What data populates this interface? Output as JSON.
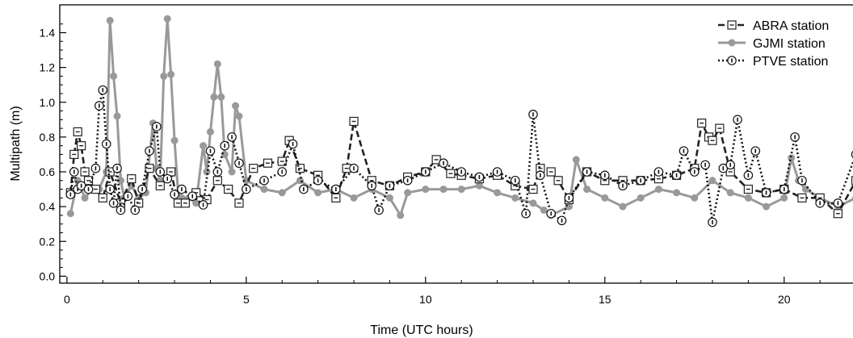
{
  "chart_data": {
    "type": "line",
    "title": "",
    "xlabel": "Time (UTC hours)",
    "ylabel": "Multipath (m)",
    "xlim": [
      -0.2,
      22.1
    ],
    "ylim": [
      -0.04,
      1.56
    ],
    "xticks": [
      0,
      5,
      10,
      15,
      20
    ],
    "xtick_labels": [
      "0",
      "5",
      "10",
      "15",
      "20"
    ],
    "yticks": [
      0.0,
      0.2,
      0.4,
      0.6,
      0.8,
      1.0,
      1.2,
      1.4
    ],
    "ytick_labels": [
      "0.0",
      "0.2",
      "0.4",
      "0.6",
      "0.8",
      "1.0",
      "1.2",
      "1.4"
    ],
    "grid": false,
    "legend_position": "top-right",
    "series": [
      {
        "name": "GJMI  station",
        "color": "#999999",
        "style": "solid",
        "marker": "filled-circle",
        "x": [
          0.1,
          0.3,
          0.5,
          0.7,
          0.9,
          1.1,
          1.2,
          1.3,
          1.4,
          1.5,
          1.6,
          1.8,
          2.0,
          2.2,
          2.4,
          2.5,
          2.6,
          2.7,
          2.8,
          2.9,
          3.0,
          3.1,
          3.2,
          3.4,
          3.6,
          3.8,
          3.9,
          4.0,
          4.1,
          4.2,
          4.3,
          4.4,
          4.6,
          4.7,
          4.8,
          5.0,
          5.5,
          6.0,
          6.5,
          7.0,
          7.5,
          8.0,
          8.5,
          9.0,
          9.3,
          9.5,
          10.0,
          10.5,
          11.0,
          11.5,
          12.0,
          12.5,
          13.0,
          13.3,
          13.5,
          14.0,
          14.2,
          14.5,
          15.0,
          15.5,
          16.0,
          16.5,
          17.0,
          17.5,
          18.0,
          18.5,
          19.0,
          19.5,
          20.0,
          20.2,
          20.4,
          20.6,
          21.0,
          21.5,
          22.0
        ],
        "y": [
          0.36,
          0.55,
          0.45,
          0.5,
          0.5,
          0.6,
          1.47,
          1.15,
          0.92,
          0.55,
          0.45,
          0.52,
          0.45,
          0.48,
          0.88,
          0.62,
          0.55,
          1.15,
          1.48,
          1.16,
          0.78,
          0.48,
          0.45,
          0.45,
          0.42,
          0.75,
          0.6,
          0.83,
          1.03,
          1.22,
          1.03,
          0.7,
          0.6,
          0.98,
          0.92,
          0.55,
          0.5,
          0.48,
          0.55,
          0.48,
          0.5,
          0.45,
          0.5,
          0.45,
          0.35,
          0.48,
          0.5,
          0.5,
          0.5,
          0.52,
          0.48,
          0.45,
          0.42,
          0.38,
          0.35,
          0.4,
          0.67,
          0.5,
          0.45,
          0.4,
          0.45,
          0.5,
          0.48,
          0.45,
          0.55,
          0.48,
          0.45,
          0.4,
          0.45,
          0.68,
          0.55,
          0.5,
          0.45,
          0.4,
          0.45
        ]
      },
      {
        "name": "ABRA station",
        "color": "#222222",
        "style": "dashed",
        "marker": "open-square",
        "x": [
          0.1,
          0.2,
          0.3,
          0.4,
          0.5,
          0.6,
          0.8,
          1.0,
          1.2,
          1.5,
          1.8,
          2.0,
          2.3,
          2.6,
          2.9,
          3.1,
          3.3,
          3.6,
          3.9,
          4.2,
          4.5,
          4.8,
          5.2,
          5.6,
          6.0,
          6.2,
          6.5,
          7.0,
          7.5,
          7.8,
          8.0,
          8.5,
          9.0,
          9.5,
          10.0,
          10.3,
          10.7,
          11.0,
          11.5,
          12.0,
          12.5,
          13.0,
          13.2,
          13.5,
          13.7,
          14.0,
          14.5,
          15.0,
          15.5,
          16.0,
          16.5,
          17.0,
          17.5,
          17.7,
          17.9,
          18.0,
          18.2,
          18.5,
          19.0,
          19.5,
          20.0,
          20.5,
          21.0,
          21.5,
          22.0
        ],
        "y": [
          0.48,
          0.7,
          0.83,
          0.75,
          0.6,
          0.55,
          0.5,
          0.45,
          0.6,
          0.42,
          0.56,
          0.42,
          0.62,
          0.52,
          0.6,
          0.42,
          0.42,
          0.48,
          0.44,
          0.55,
          0.5,
          0.42,
          0.62,
          0.65,
          0.66,
          0.78,
          0.62,
          0.58,
          0.45,
          0.62,
          0.89,
          0.55,
          0.52,
          0.57,
          0.6,
          0.67,
          0.59,
          0.58,
          0.56,
          0.58,
          0.52,
          0.5,
          0.62,
          0.6,
          0.55,
          0.44,
          0.6,
          0.55,
          0.55,
          0.55,
          0.56,
          0.58,
          0.62,
          0.88,
          0.8,
          0.78,
          0.85,
          0.6,
          0.5,
          0.48,
          0.5,
          0.45,
          0.45,
          0.36,
          0.55
        ]
      },
      {
        "name": "PTVE station",
        "color": "#111111",
        "style": "dotted",
        "marker": "open-circle-dot",
        "x": [
          0.1,
          0.2,
          0.3,
          0.4,
          0.6,
          0.8,
          0.9,
          1.0,
          1.1,
          1.2,
          1.3,
          1.4,
          1.5,
          1.7,
          1.9,
          2.1,
          2.3,
          2.5,
          2.6,
          2.8,
          3.0,
          3.2,
          3.5,
          3.8,
          4.0,
          4.2,
          4.4,
          4.6,
          4.8,
          5.0,
          5.5,
          6.0,
          6.3,
          6.6,
          7.0,
          7.5,
          8.0,
          8.5,
          8.7,
          9.0,
          9.5,
          10.0,
          10.5,
          11.0,
          11.5,
          12.0,
          12.5,
          12.8,
          13.0,
          13.2,
          13.5,
          13.8,
          14.0,
          14.5,
          15.0,
          15.5,
          16.0,
          16.5,
          17.0,
          17.2,
          17.5,
          17.8,
          18.0,
          18.3,
          18.5,
          18.7,
          19.0,
          19.2,
          19.5,
          20.0,
          20.3,
          20.5,
          21.0,
          21.5,
          22.0
        ],
        "y": [
          0.47,
          0.6,
          0.5,
          0.52,
          0.5,
          0.62,
          0.98,
          1.07,
          0.76,
          0.5,
          0.42,
          0.62,
          0.38,
          0.46,
          0.38,
          0.5,
          0.72,
          0.86,
          0.6,
          0.56,
          0.47,
          0.5,
          0.46,
          0.41,
          0.72,
          0.6,
          0.75,
          0.8,
          0.65,
          0.5,
          0.55,
          0.6,
          0.76,
          0.5,
          0.55,
          0.5,
          0.62,
          0.52,
          0.38,
          0.52,
          0.55,
          0.6,
          0.65,
          0.6,
          0.57,
          0.6,
          0.55,
          0.36,
          0.93,
          0.58,
          0.36,
          0.32,
          0.45,
          0.6,
          0.58,
          0.52,
          0.55,
          0.6,
          0.58,
          0.72,
          0.6,
          0.64,
          0.31,
          0.62,
          0.64,
          0.9,
          0.58,
          0.72,
          0.48,
          0.5,
          0.8,
          0.55,
          0.42,
          0.42,
          0.7
        ]
      }
    ]
  }
}
